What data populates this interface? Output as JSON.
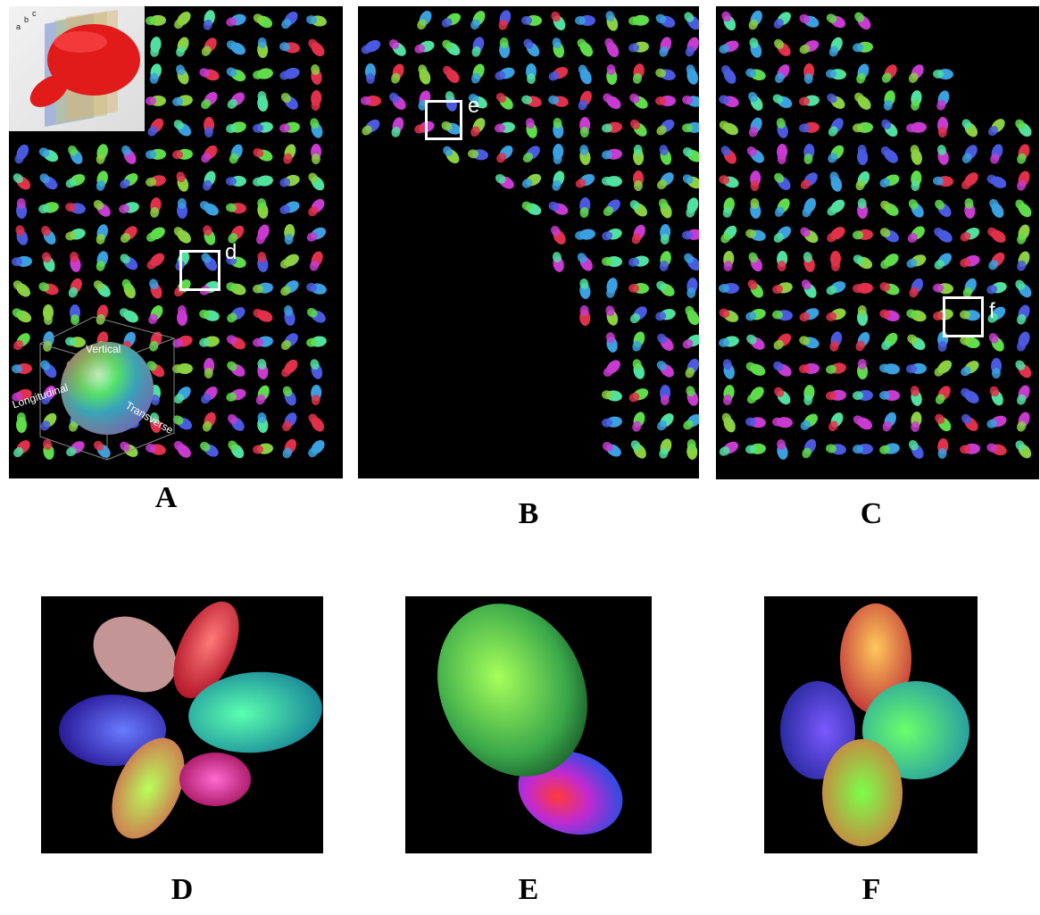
{
  "panels": {
    "A": {
      "label": "A",
      "roi_label": "d",
      "inset_letters": [
        "a",
        "b",
        "c"
      ],
      "legend": {
        "vertical": "Vertical",
        "longitudinal": "Longitudinal",
        "transverse": "Transverse"
      }
    },
    "B": {
      "label": "B",
      "roi_label": "e"
    },
    "C": {
      "label": "C",
      "roi_label": "f"
    },
    "D": {
      "label": "D"
    },
    "E": {
      "label": "E"
    },
    "F": {
      "label": "F"
    }
  },
  "colors": {
    "background": "#000000",
    "page": "#ffffff",
    "roi_box": "#ffffff",
    "heart": "#e11a1a"
  }
}
